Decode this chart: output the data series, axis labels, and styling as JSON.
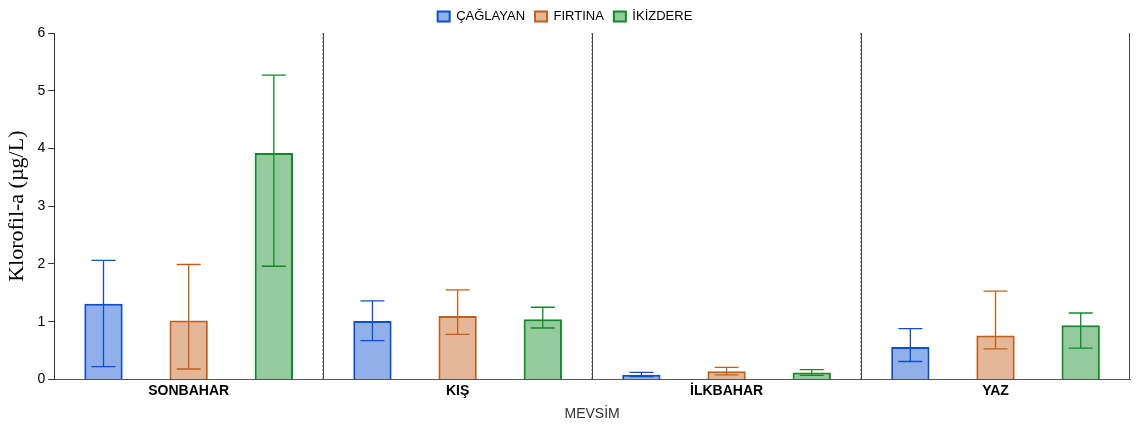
{
  "chart_data": {
    "type": "bar",
    "xlabel": "MEVSİM",
    "ylabel": "Klorofil-a (µg/L)",
    "categories": [
      "SONBAHAR",
      "KIŞ",
      "İLKBAHAR",
      "YAZ"
    ],
    "series": [
      {
        "name": "ÇAĞLAYAN",
        "color": "#0a4fd0",
        "values": [
          1.31,
          1.01,
          0.08,
          0.56
        ],
        "errors": [
          [
            0.22,
            2.06
          ],
          [
            0.67,
            1.36
          ],
          [
            0.05,
            0.12
          ],
          [
            0.31,
            0.88
          ]
        ]
      },
      {
        "name": "FIRTINA",
        "color": "#c0601a",
        "values": [
          1.02,
          1.1,
          0.14,
          0.76
        ],
        "errors": [
          [
            0.18,
            1.99
          ],
          [
            0.78,
            1.55
          ],
          [
            0.08,
            0.21
          ],
          [
            0.53,
            1.53
          ]
        ]
      },
      {
        "name": "İKİZDERE",
        "color": "#108a28",
        "values": [
          3.92,
          1.04,
          0.12,
          0.94
        ],
        "errors": [
          [
            1.96,
            5.27
          ],
          [
            0.89,
            1.25
          ],
          [
            0.07,
            0.17
          ],
          [
            0.54,
            1.15
          ]
        ]
      }
    ],
    "ylim": [
      0,
      6
    ],
    "yticks": [
      0,
      1,
      2,
      3,
      4,
      5,
      6
    ],
    "grid": "x",
    "legend": "top"
  }
}
